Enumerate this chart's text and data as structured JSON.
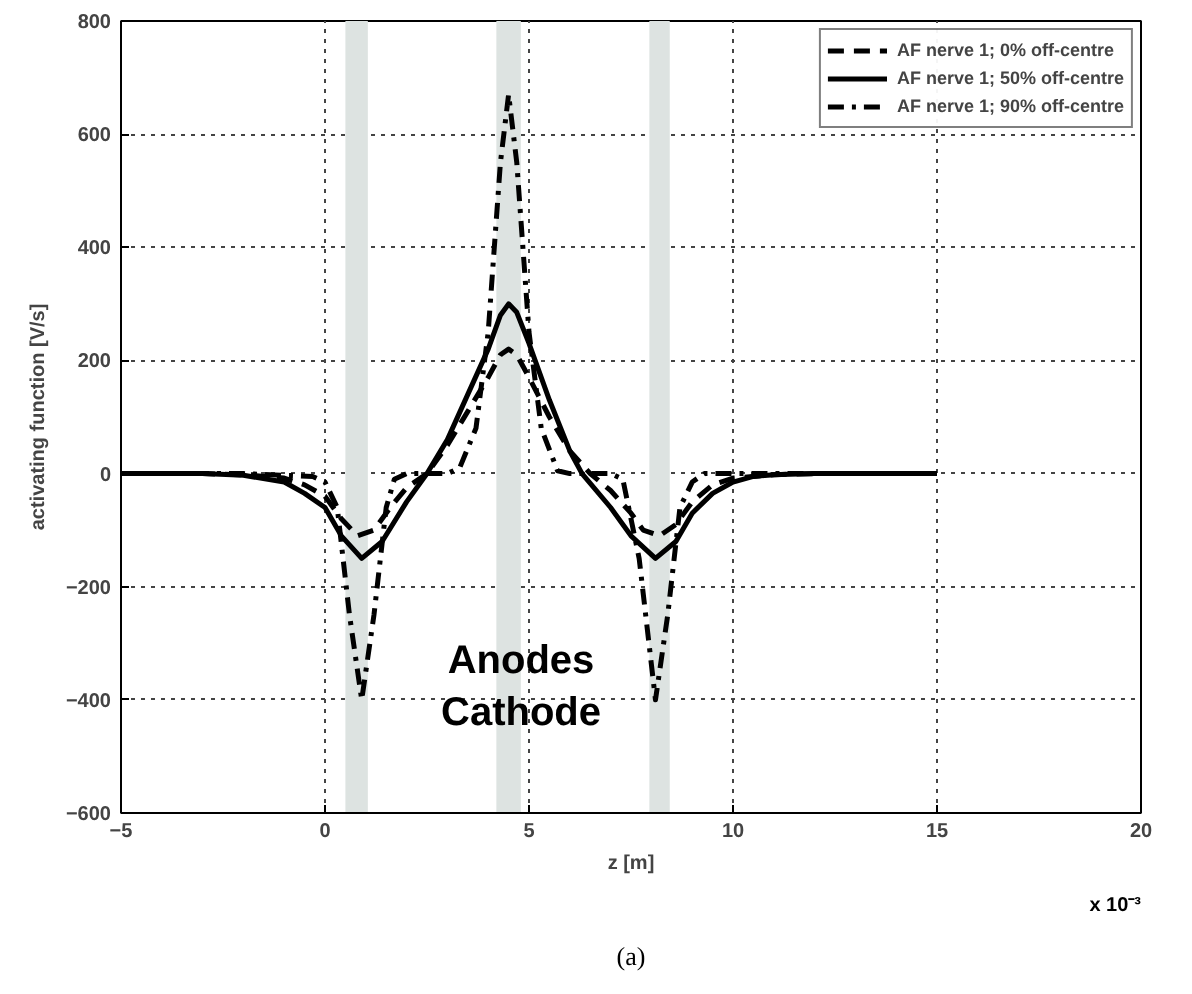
{
  "chart_data": {
    "type": "line",
    "xlabel": "z [m]",
    "ylabel": "activating function [V/s]",
    "xlim": [
      -5,
      20
    ],
    "xticks": [
      -5,
      0,
      5,
      10,
      15,
      20
    ],
    "ylim": [
      -600,
      800
    ],
    "yticks": [
      -600,
      -400,
      -200,
      0,
      200,
      400,
      600,
      800
    ],
    "grid": true,
    "legend": "top right",
    "marker": "none",
    "bands": [
      {
        "axis": "x",
        "from": 0.5,
        "to": 1.05,
        "color": "#dde3e1"
      },
      {
        "axis": "x",
        "from": 4.2,
        "to": 4.8,
        "color": "#dde3e1"
      },
      {
        "axis": "x",
        "from": 7.95,
        "to": 8.45,
        "color": "#dde3e1"
      }
    ],
    "annotations": [
      "Anodes",
      "Cathode",
      "x 10⁻³",
      "(a)"
    ],
    "series": [
      {
        "name": "AF nerve 1; 0% off-centre",
        "color": "#000000",
        "line_style": "dashed",
        "x": [
          -5,
          -3,
          -2,
          -1,
          -0.5,
          0,
          0.4,
          0.8,
          1.2,
          1.6,
          2,
          2.5,
          3,
          3.5,
          4,
          4.3,
          4.5,
          4.7,
          5,
          5.5,
          6,
          6.5,
          7,
          7.5,
          7.8,
          8.2,
          8.6,
          9,
          9.5,
          10,
          11,
          12,
          15
        ],
        "values": [
          0,
          0,
          -2,
          -8,
          -20,
          -40,
          -80,
          -110,
          -100,
          -60,
          -25,
          0,
          50,
          110,
          170,
          210,
          220,
          210,
          170,
          100,
          40,
          0,
          -30,
          -70,
          -100,
          -110,
          -90,
          -50,
          -20,
          -8,
          -2,
          0,
          0
        ]
      },
      {
        "name": "AF nerve 1; 50% off-centre",
        "color": "#000000",
        "line_style": "solid",
        "x": [
          -5,
          -3,
          -2,
          -1,
          -0.5,
          0,
          0.4,
          0.9,
          1.4,
          2,
          2.5,
          3,
          3.5,
          4,
          4.3,
          4.5,
          4.7,
          5,
          5.5,
          6,
          6.3,
          7,
          7.5,
          8.1,
          8.6,
          9,
          9.5,
          10,
          10.5,
          11,
          12,
          15
        ],
        "values": [
          0,
          0,
          -3,
          -15,
          -35,
          -60,
          -110,
          -150,
          -120,
          -50,
          0,
          60,
          140,
          220,
          280,
          300,
          285,
          230,
          130,
          40,
          0,
          -60,
          -110,
          -150,
          -120,
          -70,
          -35,
          -15,
          -5,
          -2,
          0,
          0
        ]
      },
      {
        "name": "AF nerve 1; 90% off-centre",
        "color": "#000000",
        "line_style": "dashdot",
        "x": [
          -5,
          -2,
          -1,
          -0.3,
          0,
          0.3,
          0.6,
          0.9,
          1.2,
          1.5,
          1.7,
          2,
          3,
          3.3,
          3.7,
          4,
          4.3,
          4.5,
          4.7,
          5,
          5.3,
          5.7,
          6,
          7,
          7.3,
          7.7,
          8.1,
          8.4,
          8.7,
          9,
          9.3,
          10,
          12,
          15
        ],
        "values": [
          0,
          0,
          -3,
          -5,
          -15,
          -60,
          -250,
          -400,
          -250,
          -60,
          -10,
          0,
          0,
          10,
          80,
          250,
          550,
          670,
          550,
          250,
          80,
          5,
          0,
          0,
          -10,
          -150,
          -400,
          -250,
          -60,
          -15,
          0,
          0,
          0,
          0
        ]
      }
    ]
  }
}
